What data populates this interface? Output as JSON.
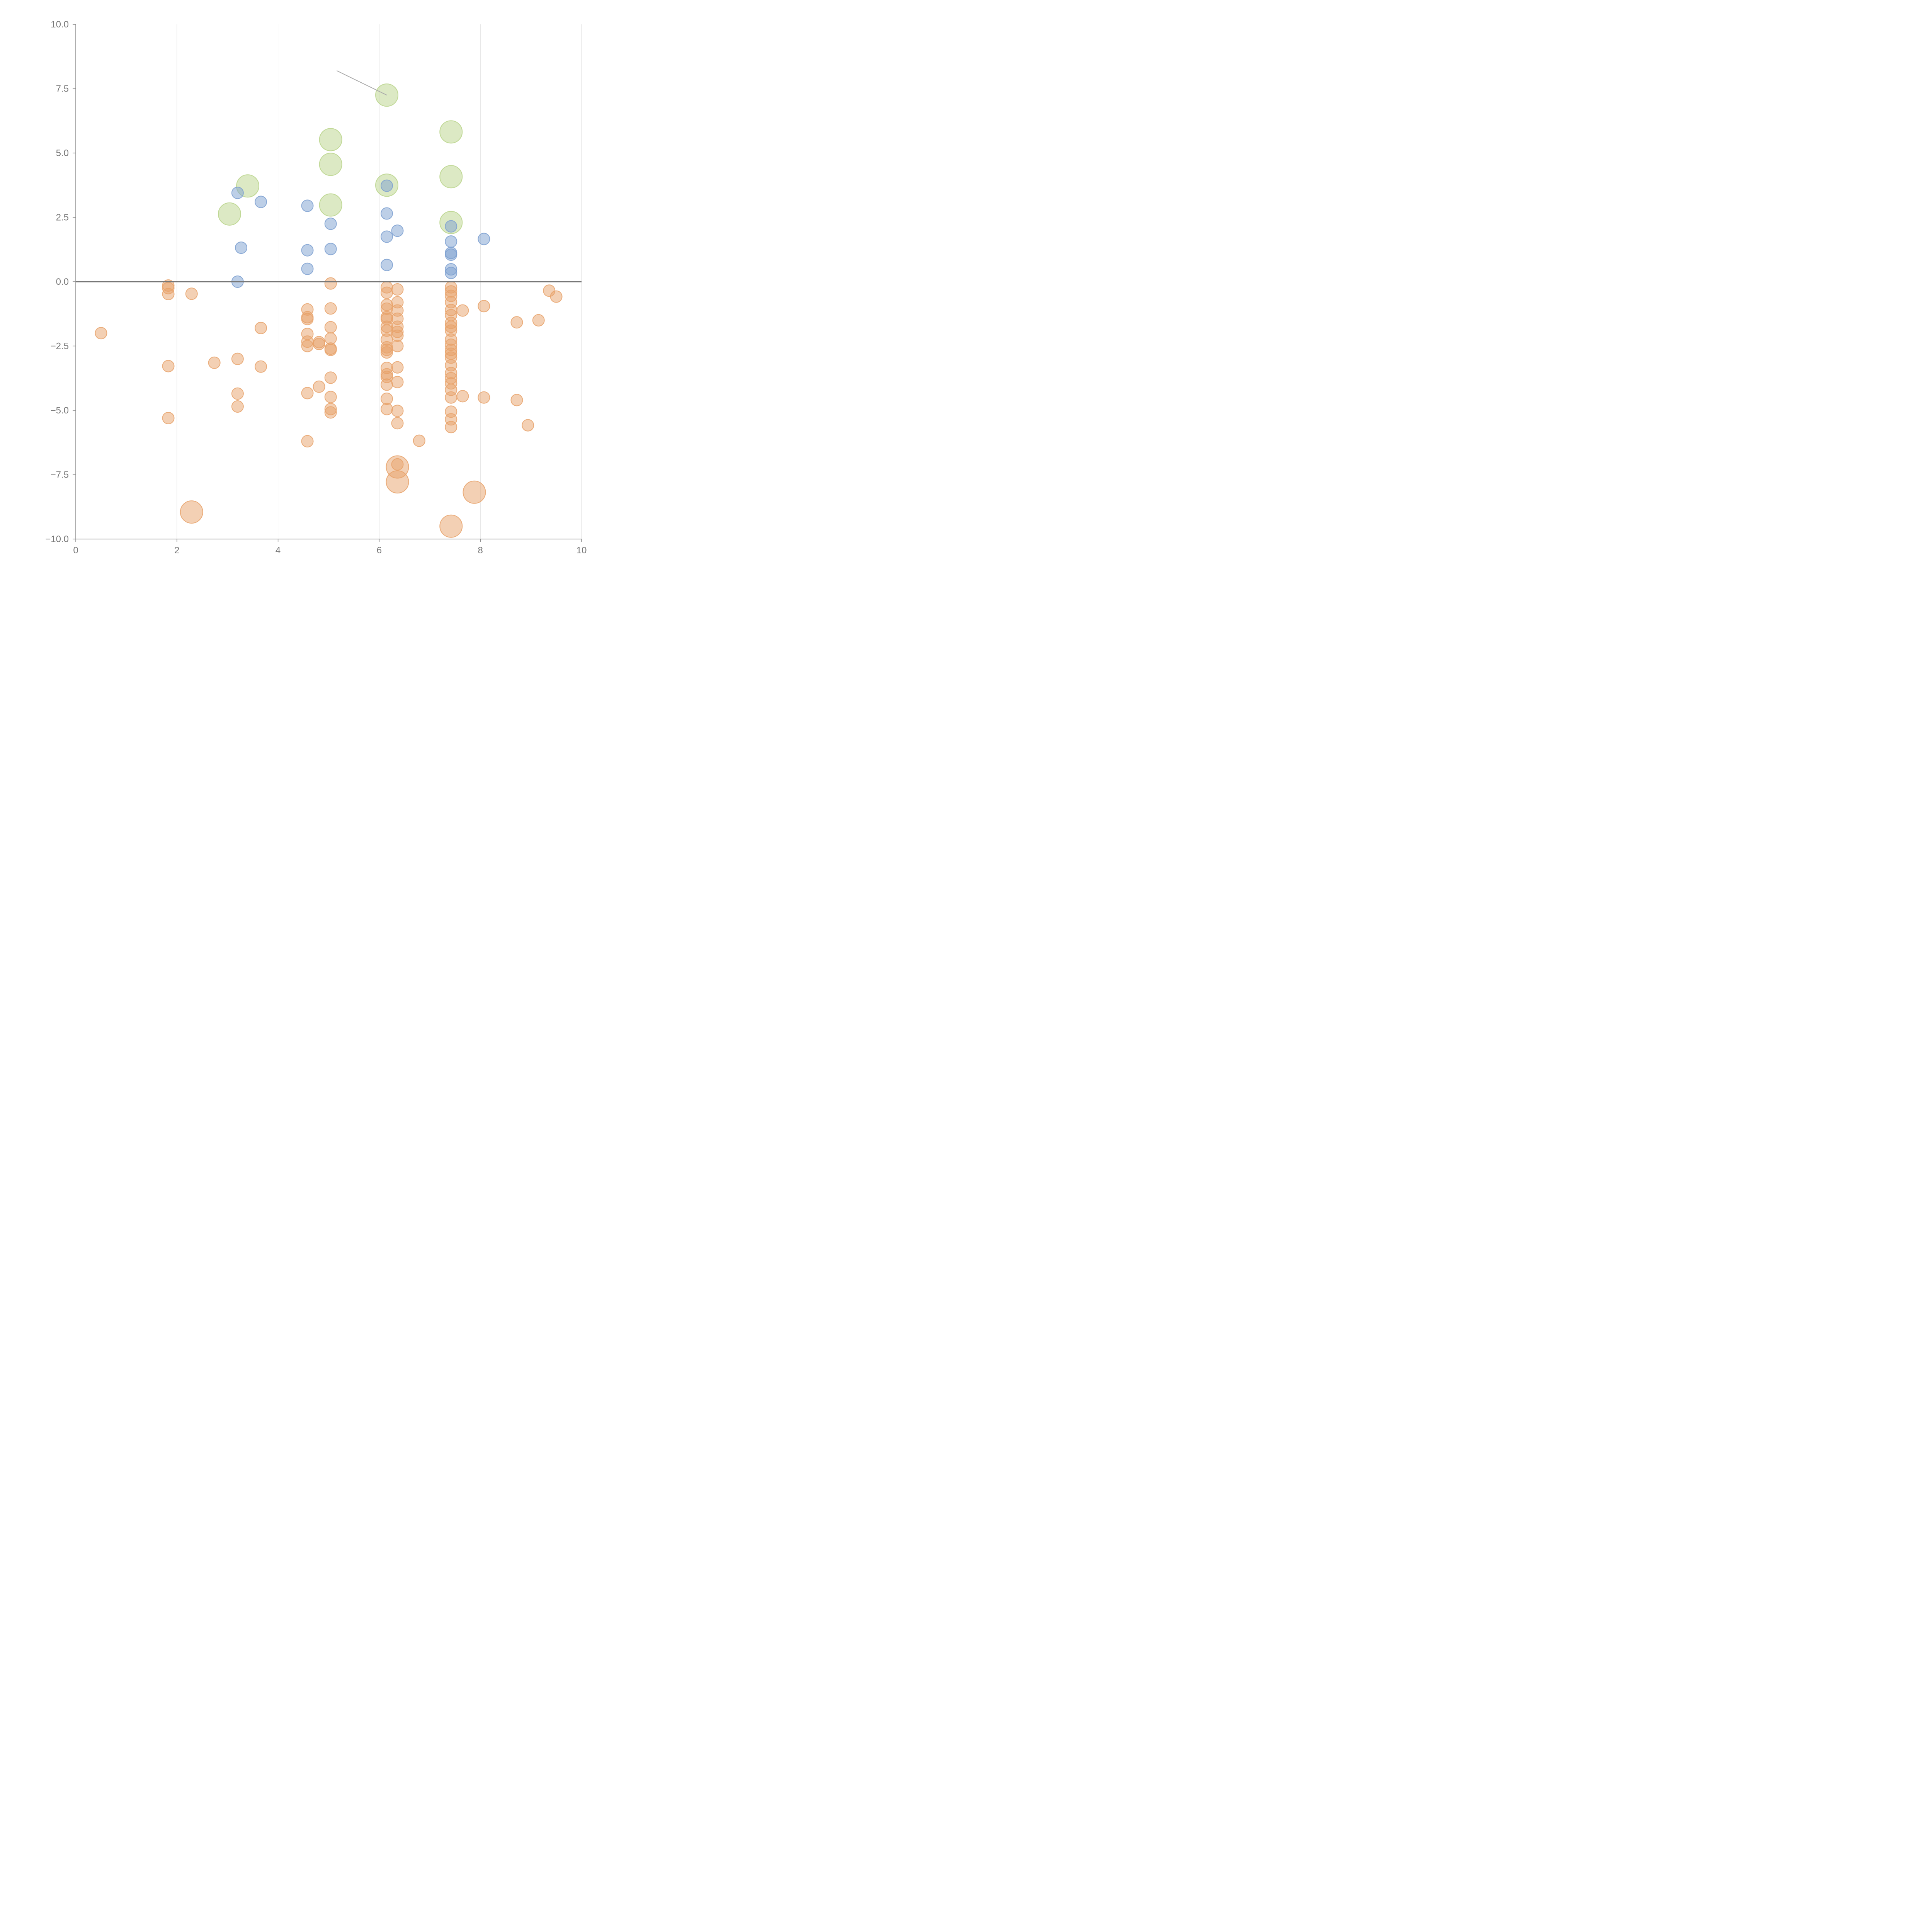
{
  "chart_data": {
    "type": "scatter",
    "title": "",
    "xlabel": "",
    "ylabel": "",
    "xlim": [
      0,
      10
    ],
    "ylim": [
      -10,
      10
    ],
    "grid": "vertical",
    "x_ticks": [
      "0",
      "2",
      "4",
      "6",
      "8",
      "10"
    ],
    "x_tick_values": [
      0,
      2,
      4,
      6,
      8,
      10
    ],
    "y_ticks": [
      "10.0",
      "7.5",
      "5.0",
      "2.5",
      "0.0",
      "−2.5",
      "−5.0",
      "−7.5",
      "−10.0"
    ],
    "y_tick_values": [
      10,
      7.5,
      5,
      2.5,
      0,
      -2.5,
      -5,
      -7.5,
      -10
    ],
    "colors": {
      "blue": "#7b9fd0",
      "orange": "#e8a26a",
      "green": "#b9d48a",
      "axis": "#888888",
      "zero_line": "#777777",
      "grid": "#dddddd",
      "leader_line": "#aaaaaa"
    },
    "series": [
      {
        "name": "blue",
        "color": "blue",
        "size": "small",
        "points": [
          [
            3.2,
            3.45
          ],
          [
            3.66,
            3.1
          ],
          [
            3.27,
            1.32
          ],
          [
            3.2,
            0.0
          ],
          [
            4.58,
            2.95
          ],
          [
            4.58,
            1.22
          ],
          [
            4.58,
            0.5
          ],
          [
            5.04,
            2.25
          ],
          [
            5.04,
            1.27
          ],
          [
            6.15,
            3.73
          ],
          [
            6.15,
            2.65
          ],
          [
            6.15,
            1.75
          ],
          [
            6.15,
            0.65
          ],
          [
            6.36,
            1.98
          ],
          [
            7.42,
            2.15
          ],
          [
            7.42,
            1.56
          ],
          [
            7.42,
            1.12
          ],
          [
            7.42,
            1.05
          ],
          [
            7.42,
            0.48
          ],
          [
            7.42,
            0.34
          ],
          [
            8.07,
            1.66
          ]
        ]
      },
      {
        "name": "orange",
        "color": "orange",
        "size": "small",
        "points": [
          [
            0.5,
            -2.0
          ],
          [
            1.83,
            -0.15
          ],
          [
            1.83,
            -0.25
          ],
          [
            1.83,
            -0.48
          ],
          [
            1.83,
            -3.28
          ],
          [
            1.83,
            -5.3
          ],
          [
            2.29,
            -0.47
          ],
          [
            2.74,
            -3.15
          ],
          [
            3.2,
            -3.0
          ],
          [
            3.2,
            -4.35
          ],
          [
            3.2,
            -4.85
          ],
          [
            3.66,
            -1.8
          ],
          [
            3.66,
            -3.3
          ],
          [
            4.58,
            -1.08
          ],
          [
            4.58,
            -1.38
          ],
          [
            4.58,
            -1.45
          ],
          [
            4.58,
            -2.03
          ],
          [
            4.58,
            -2.33
          ],
          [
            4.58,
            -2.5
          ],
          [
            4.58,
            -4.33
          ],
          [
            4.58,
            -6.2
          ],
          [
            4.81,
            -2.35
          ],
          [
            4.81,
            -2.42
          ],
          [
            4.81,
            -4.08
          ],
          [
            5.04,
            -0.07
          ],
          [
            5.04,
            -1.04
          ],
          [
            5.04,
            -1.77
          ],
          [
            5.04,
            -2.21
          ],
          [
            5.04,
            -2.6
          ],
          [
            5.04,
            -2.65
          ],
          [
            5.04,
            -3.73
          ],
          [
            5.04,
            -4.48
          ],
          [
            5.04,
            -4.95
          ],
          [
            5.04,
            -5.08
          ],
          [
            6.15,
            -0.22
          ],
          [
            6.15,
            -0.43
          ],
          [
            6.15,
            -0.9
          ],
          [
            6.15,
            -1.05
          ],
          [
            6.15,
            -1.38
          ],
          [
            6.15,
            -1.45
          ],
          [
            6.15,
            -1.75
          ],
          [
            6.15,
            -1.9
          ],
          [
            6.15,
            -2.25
          ],
          [
            6.15,
            -2.55
          ],
          [
            6.15,
            -2.65
          ],
          [
            6.15,
            -2.75
          ],
          [
            6.15,
            -3.35
          ],
          [
            6.15,
            -3.6
          ],
          [
            6.15,
            -3.7
          ],
          [
            6.15,
            -4.0
          ],
          [
            6.15,
            -4.55
          ],
          [
            6.15,
            -4.95
          ],
          [
            6.36,
            -0.3
          ],
          [
            6.36,
            -0.8
          ],
          [
            6.36,
            -1.12
          ],
          [
            6.36,
            -1.44
          ],
          [
            6.36,
            -1.75
          ],
          [
            6.36,
            -1.95
          ],
          [
            6.36,
            -2.1
          ],
          [
            6.36,
            -2.5
          ],
          [
            6.36,
            -3.33
          ],
          [
            6.36,
            -3.9
          ],
          [
            6.36,
            -5.02
          ],
          [
            6.36,
            -5.5
          ],
          [
            6.36,
            -7.1
          ],
          [
            6.79,
            -6.18
          ],
          [
            7.42,
            -0.22
          ],
          [
            7.42,
            -0.38
          ],
          [
            7.42,
            -0.55
          ],
          [
            7.42,
            -0.8
          ],
          [
            7.42,
            -1.1
          ],
          [
            7.42,
            -1.3
          ],
          [
            7.42,
            -1.6
          ],
          [
            7.42,
            -1.75
          ],
          [
            7.42,
            -1.9
          ],
          [
            7.42,
            -2.25
          ],
          [
            7.42,
            -2.45
          ],
          [
            7.42,
            -2.65
          ],
          [
            7.42,
            -2.8
          ],
          [
            7.42,
            -2.95
          ],
          [
            7.42,
            -3.25
          ],
          [
            7.42,
            -3.55
          ],
          [
            7.42,
            -3.75
          ],
          [
            7.42,
            -3.95
          ],
          [
            7.42,
            -4.2
          ],
          [
            7.42,
            -4.5
          ],
          [
            7.42,
            -5.05
          ],
          [
            7.42,
            -5.35
          ],
          [
            7.42,
            -5.65
          ],
          [
            7.65,
            -1.12
          ],
          [
            7.65,
            -4.45
          ],
          [
            8.07,
            -0.95
          ],
          [
            8.07,
            -4.5
          ],
          [
            8.72,
            -1.58
          ],
          [
            8.72,
            -4.6
          ],
          [
            8.94,
            -5.58
          ],
          [
            9.15,
            -1.5
          ],
          [
            9.36,
            -0.35
          ],
          [
            9.5,
            -0.58
          ]
        ]
      },
      {
        "name": "orange-large",
        "color": "orange",
        "size": "large",
        "points": [
          [
            2.29,
            -8.95
          ],
          [
            6.36,
            -7.2
          ],
          [
            6.36,
            -7.78
          ],
          [
            7.88,
            -8.18
          ],
          [
            7.42,
            -9.5
          ]
        ]
      },
      {
        "name": "green",
        "color": "green",
        "size": "large",
        "points": [
          [
            6.15,
            7.25
          ],
          [
            5.04,
            5.52
          ],
          [
            7.42,
            5.82
          ],
          [
            5.04,
            4.56
          ],
          [
            3.4,
            3.72
          ],
          [
            6.15,
            3.75
          ],
          [
            7.42,
            4.08
          ],
          [
            3.04,
            2.63
          ],
          [
            5.04,
            2.98
          ],
          [
            7.42,
            2.3
          ]
        ]
      }
    ],
    "annotation_line": {
      "from": [
        5.16,
        8.2
      ],
      "to": [
        6.15,
        7.25
      ]
    }
  }
}
